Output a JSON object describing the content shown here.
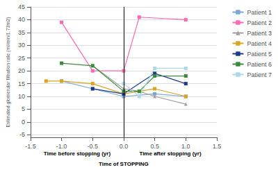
{
  "chart_data": {
    "type": "line",
    "ylabel": "Estimated glomerular filtration rate (ml/min/1.73m2)",
    "annotations": [
      "Time before stopping (yr)",
      "Time of STOPPING",
      "Time after stopping (yr)"
    ],
    "series": [
      {
        "name": "Patient 1",
        "color": "#7BA7D4",
        "marker": "square",
        "x": [
          -1.0,
          -0.5,
          0.0,
          0.5,
          1.0
        ],
        "values": [
          16,
          13,
          10,
          11,
          10
        ]
      },
      {
        "name": "Patient 2",
        "color": "#FF69B4",
        "marker": "square",
        "x": [
          -1.0,
          -0.5,
          0.0,
          0.25,
          1.0
        ],
        "values": [
          39,
          20,
          20,
          41,
          40
        ]
      },
      {
        "name": "Patient 3",
        "color": "#A0A0A0",
        "marker": "triangle",
        "x": [
          -0.5,
          0.0,
          0.25,
          0.5,
          1.0
        ],
        "values": [
          22,
          13,
          12,
          10,
          7
        ]
      },
      {
        "name": "Patient 4",
        "color": "#DAA520",
        "marker": "square",
        "x": [
          -1.25,
          -1.0,
          -0.5,
          0.0,
          0.5,
          1.0
        ],
        "values": [
          16,
          16,
          15,
          11,
          13,
          10
        ]
      },
      {
        "name": "Patient 5",
        "color": "#1A3A8C",
        "marker": "square",
        "x": [
          -0.5,
          0.0,
          0.5,
          1.0
        ],
        "values": [
          13,
          11,
          19,
          15
        ]
      },
      {
        "name": "Patient 6",
        "color": "#3A8C3A",
        "marker": "square",
        "x": [
          -1.0,
          -0.5,
          0.0,
          0.25,
          0.5,
          1.0
        ],
        "values": [
          23,
          22,
          12,
          12,
          18,
          18
        ]
      },
      {
        "name": "Patient 7",
        "color": "#ADD8E6",
        "marker": "square",
        "x": [
          0.0,
          0.25,
          0.5,
          1.0
        ],
        "values": [
          15,
          10,
          21,
          21
        ]
      }
    ],
    "xlim": [
      -1.5,
      1.5
    ],
    "xticks": [
      -1.5,
      {
        "value": -1.0,
        "label": "-1.0"
      },
      -0.5,
      {
        "value": 0.0,
        "label": "0.0"
      },
      0.5,
      {
        "value": 1.0,
        "label": "1.0"
      },
      1.5
    ],
    "ylim": [
      -6,
      45
    ],
    "yticks": [
      -5,
      0,
      5,
      10,
      15,
      20,
      25,
      30,
      35,
      40,
      45
    ],
    "vlines": [
      0.0
    ],
    "grid": true,
    "legend": "right"
  }
}
